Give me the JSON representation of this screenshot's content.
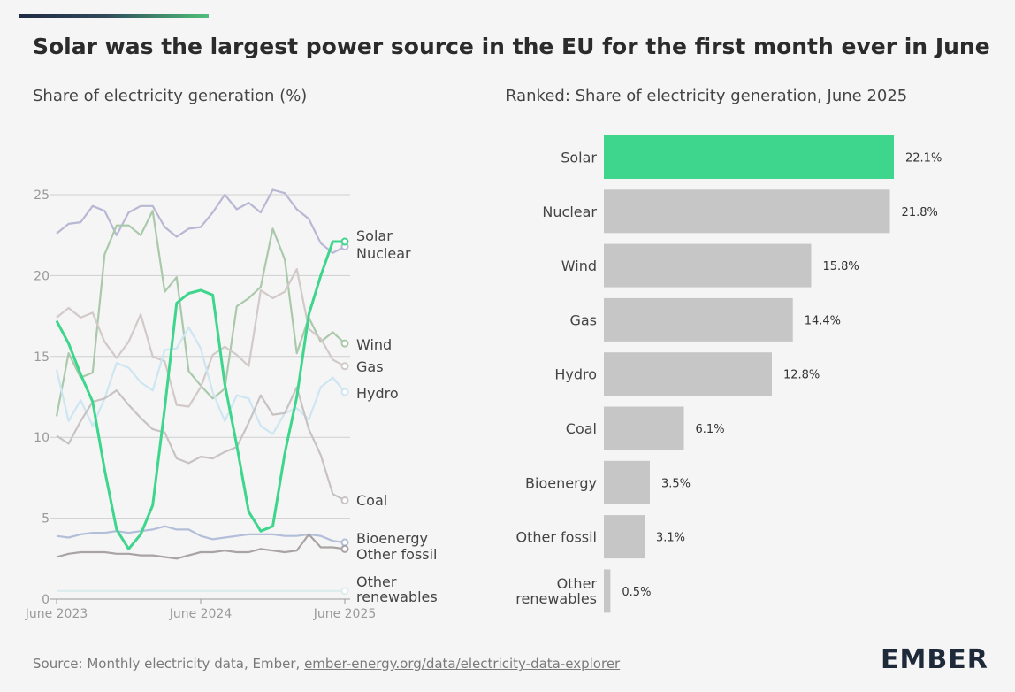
{
  "header": {
    "title": "Solar was the largest power source in the EU for the first month ever in June",
    "left_subtitle": "Share of electricity generation (%)",
    "right_subtitle": "Ranked: Share of electricity generation, June 2025"
  },
  "footer": {
    "source_prefix": "Source: Monthly electricity data, Ember, ",
    "source_link": "ember-energy.org/data/electricity-data-explorer",
    "logo": "EMBER"
  },
  "colors": {
    "solar": "#3dd68c",
    "nuclear": "#b8b8d4",
    "wind": "#aac9aa",
    "gas": "#d2c9c9",
    "hydro": "#cde6f2",
    "coal": "#c8c2c2",
    "bioenergy": "#b3bfd9",
    "other_fossil": "#a9a3a3",
    "other_renewables": "#ddecec",
    "bar_default": "#c6c6c6",
    "bar_highlight": "#3dd68c"
  },
  "chart_data": [
    {
      "type": "line",
      "ylim": [
        0,
        25
      ],
      "yticks": [
        "0",
        "5",
        "10",
        "15",
        "20",
        "25"
      ],
      "xticks": [
        "June 2023",
        "June 2024",
        "June 2025"
      ],
      "x_tick_index": [
        0,
        12,
        24
      ],
      "grid": true,
      "series": [
        {
          "name": "Nuclear",
          "key": "nuclear",
          "label_lines": [
            "Nuclear"
          ],
          "values": [
            22.6,
            23.2,
            23.3,
            24.3,
            24.0,
            22.5,
            23.9,
            24.3,
            24.3,
            23.0,
            22.4,
            22.9,
            23.0,
            23.9,
            25.0,
            24.1,
            24.5,
            23.9,
            25.3,
            25.1,
            24.1,
            23.5,
            22.0,
            21.4,
            21.8
          ]
        },
        {
          "name": "Wind",
          "key": "wind",
          "label_lines": [
            "Wind"
          ],
          "values": [
            11.3,
            15.2,
            13.7,
            14.0,
            21.3,
            23.1,
            23.1,
            22.5,
            24.0,
            19.0,
            19.9,
            14.1,
            13.2,
            12.4,
            13.0,
            18.1,
            18.6,
            19.3,
            22.9,
            21.0,
            15.2,
            17.4,
            15.9,
            16.5,
            15.8
          ]
        },
        {
          "name": "Gas",
          "key": "gas",
          "label_lines": [
            "Gas"
          ],
          "values": [
            17.4,
            18.0,
            17.4,
            17.7,
            15.9,
            14.9,
            15.9,
            17.6,
            15.0,
            14.7,
            12.0,
            11.9,
            13.1,
            15.1,
            15.6,
            15.1,
            14.4,
            19.1,
            18.6,
            19.0,
            20.4,
            16.7,
            16.1,
            14.8,
            14.4
          ]
        },
        {
          "name": "Hydro",
          "key": "hydro",
          "label_lines": [
            "Hydro"
          ],
          "values": [
            14.2,
            11.0,
            12.3,
            10.7,
            12.4,
            14.6,
            14.3,
            13.4,
            12.9,
            15.4,
            15.5,
            16.8,
            15.5,
            12.8,
            11.0,
            12.6,
            12.4,
            10.7,
            10.2,
            11.5,
            11.8,
            11.1,
            13.1,
            13.7,
            12.8
          ]
        },
        {
          "name": "Coal",
          "key": "coal",
          "label_lines": [
            "Coal"
          ],
          "values": [
            10.1,
            9.6,
            11.0,
            12.2,
            12.4,
            12.9,
            12.0,
            11.2,
            10.5,
            10.3,
            8.7,
            8.4,
            8.8,
            8.7,
            9.1,
            9.4,
            10.9,
            12.6,
            11.4,
            11.5,
            13.1,
            10.5,
            8.9,
            6.5,
            6.1
          ]
        },
        {
          "name": "Bioenergy",
          "key": "bioenergy",
          "label_lines": [
            "Bioenergy"
          ],
          "values": [
            3.9,
            3.8,
            4.0,
            4.1,
            4.1,
            4.2,
            4.1,
            4.2,
            4.3,
            4.5,
            4.3,
            4.3,
            3.9,
            3.7,
            3.8,
            3.9,
            4.0,
            4.0,
            4.0,
            3.9,
            3.9,
            4.0,
            3.9,
            3.6,
            3.5
          ]
        },
        {
          "name": "Other fossil",
          "key": "other_fossil",
          "label_lines": [
            "Other fossil"
          ],
          "values": [
            2.6,
            2.8,
            2.9,
            2.9,
            2.9,
            2.8,
            2.8,
            2.7,
            2.7,
            2.6,
            2.5,
            2.7,
            2.9,
            2.9,
            3.0,
            2.9,
            2.9,
            3.1,
            3.0,
            2.9,
            3.0,
            4.0,
            3.2,
            3.2,
            3.1
          ]
        },
        {
          "name": "Other renewables",
          "key": "other_renewables",
          "label_lines": [
            "Other",
            "renewables"
          ],
          "values": [
            0.5,
            0.5,
            0.5,
            0.5,
            0.5,
            0.5,
            0.5,
            0.5,
            0.5,
            0.5,
            0.5,
            0.5,
            0.5,
            0.5,
            0.5,
            0.5,
            0.5,
            0.5,
            0.5,
            0.5,
            0.5,
            0.5,
            0.5,
            0.5,
            0.5
          ]
        },
        {
          "name": "Solar",
          "key": "solar",
          "label_lines": [
            "Solar"
          ],
          "values": [
            17.2,
            15.8,
            13.9,
            12.2,
            8.0,
            4.3,
            3.1,
            4.0,
            5.8,
            11.8,
            18.3,
            18.9,
            19.1,
            18.8,
            13.3,
            9.5,
            5.4,
            4.2,
            4.5,
            9.0,
            12.5,
            17.6,
            20.0,
            22.1,
            22.1
          ]
        }
      ]
    },
    {
      "type": "bar",
      "orientation": "horizontal",
      "highlight": "Solar",
      "bars": [
        {
          "lines": [
            "Solar"
          ],
          "value": 22.1,
          "label": "22.1%"
        },
        {
          "lines": [
            "Nuclear"
          ],
          "value": 21.8,
          "label": "21.8%"
        },
        {
          "lines": [
            "Wind"
          ],
          "value": 15.8,
          "label": "15.8%"
        },
        {
          "lines": [
            "Gas"
          ],
          "value": 14.4,
          "label": "14.4%"
        },
        {
          "lines": [
            "Hydro"
          ],
          "value": 12.8,
          "label": "12.8%"
        },
        {
          "lines": [
            "Coal"
          ],
          "value": 6.1,
          "label": "6.1%"
        },
        {
          "lines": [
            "Bioenergy"
          ],
          "value": 3.5,
          "label": "3.5%"
        },
        {
          "lines": [
            "Other fossil"
          ],
          "value": 3.1,
          "label": "3.1%"
        },
        {
          "lines": [
            "Other",
            "renewables"
          ],
          "value": 0.5,
          "label": "0.5%"
        }
      ]
    }
  ]
}
